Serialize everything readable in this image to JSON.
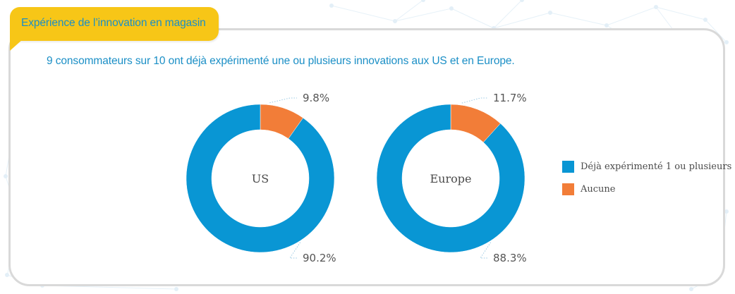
{
  "header": {
    "tag_label": "Expérience de l’innovation en magasin",
    "subtitle": "9 consommateurs sur 10 ont déjà expérimenté une ou plusieurs innovations aux US et en Europe."
  },
  "colors": {
    "accent_yellow": "#f7c617",
    "title_blue": "#1b8fc6",
    "series_blue": "#0996d4",
    "series_orange": "#f27d38"
  },
  "chart_data": [
    {
      "type": "pie",
      "center_label": "US",
      "slices": [
        {
          "label": "Aucune",
          "value": 9.8,
          "display": "9.8%",
          "color": "#f27d38"
        },
        {
          "label": "Déjà expérimenté 1 ou plusieurs",
          "value": 90.2,
          "display": "90.2%",
          "color": "#0996d4"
        }
      ]
    },
    {
      "type": "pie",
      "center_label": "Europe",
      "slices": [
        {
          "label": "Aucune",
          "value": 11.7,
          "display": "11.7%",
          "color": "#f27d38"
        },
        {
          "label": "Déjà expérimenté 1 ou plusieurs",
          "value": 88.3,
          "display": "88.3%",
          "color": "#0996d4"
        }
      ]
    }
  ],
  "legend": [
    {
      "label": "Déjà expérimenté 1 ou plusieurs",
      "color": "#0996d4"
    },
    {
      "label": "Aucune",
      "color": "#f27d38"
    }
  ]
}
